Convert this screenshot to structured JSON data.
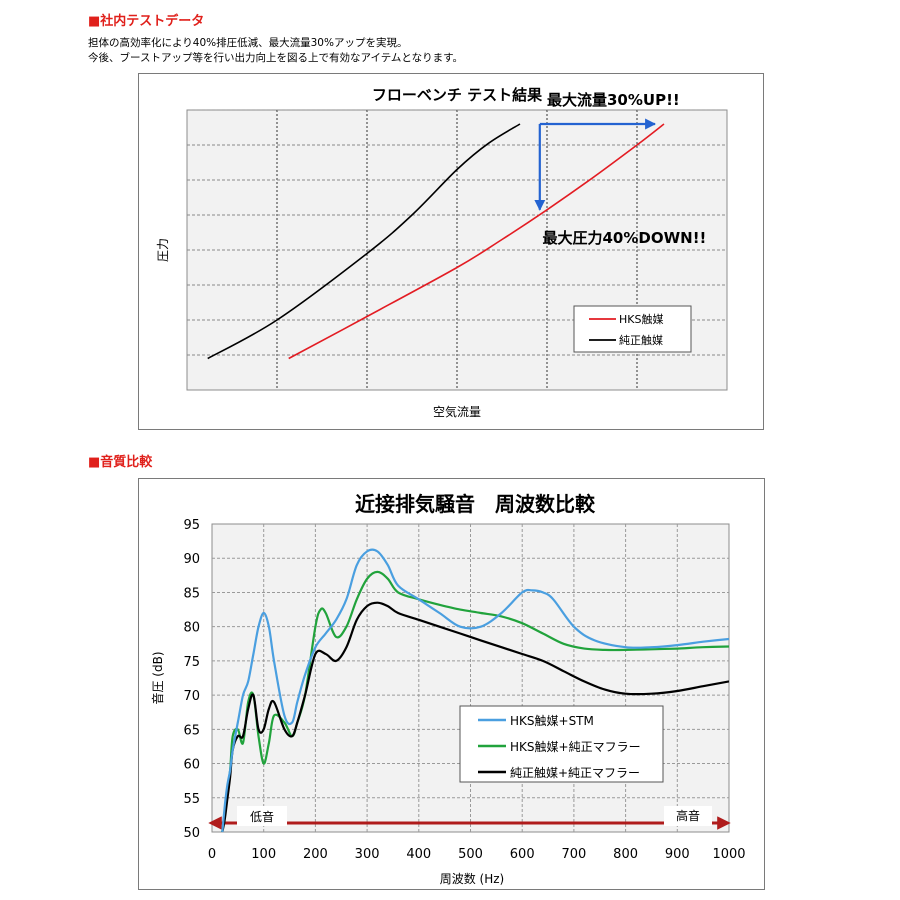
{
  "section1": {
    "heading": "■社内テストデータ",
    "description": [
      "担体の高効率化により40%排圧低減、最大流量30%アップを実現。",
      "今後、ブーストアップ等を行い出力向上を図る上で有効なアイテムとなります。"
    ]
  },
  "section2": {
    "heading": "■音質比較"
  },
  "chart_data": [
    {
      "type": "line",
      "title": "フローベンチ テスト結果",
      "xlabel": "空気流量",
      "ylabel": "圧力",
      "xlim": [
        0,
        6
      ],
      "ylim": [
        0,
        8
      ],
      "grid": true,
      "legend_position": "bottom-right",
      "series": [
        {
          "name": "HKS触媒",
          "color": "#e31c23",
          "x": [
            1.13,
            2.0,
            3.0,
            3.5,
            4.0,
            4.5,
            5.0,
            5.3
          ],
          "y": [
            0.9,
            2.1,
            3.5,
            4.3,
            5.15,
            6.05,
            7.0,
            7.6
          ]
        },
        {
          "name": "純正触媒",
          "color": "#000000",
          "x": [
            0.23,
            1.0,
            2.0,
            2.5,
            3.0,
            3.35,
            3.7
          ],
          "y": [
            0.9,
            2.0,
            3.9,
            5.0,
            6.3,
            7.05,
            7.6
          ]
        }
      ],
      "annotations": [
        {
          "text": "最大流量30%UP!!",
          "x": 4.0,
          "y": 8.15
        },
        {
          "text": "最大圧力40%DOWN!!",
          "x": 3.95,
          "y": 4.2
        }
      ],
      "arrows": [
        {
          "from": [
            3.92,
            7.6
          ],
          "to": [
            5.2,
            7.6
          ],
          "color": "#2463d1"
        },
        {
          "from": [
            3.92,
            7.6
          ],
          "to": [
            3.92,
            5.15
          ],
          "color": "#2463d1"
        }
      ]
    },
    {
      "type": "line",
      "title": "近接排気騒音　周波数比較",
      "xlabel": "周波数 (Hz)",
      "ylabel": "音圧 (dB)",
      "xlim": [
        0,
        1000
      ],
      "ylim": [
        50,
        95
      ],
      "xticks": [
        0,
        100,
        200,
        300,
        400,
        500,
        600,
        700,
        800,
        900,
        1000
      ],
      "yticks": [
        50,
        55,
        60,
        65,
        70,
        75,
        80,
        85,
        90,
        95
      ],
      "grid": true,
      "legend_position": "lower-right",
      "series": [
        {
          "name": "HKS触媒+STM",
          "color": "#4a9fe0",
          "x": [
            20,
            25,
            30,
            35,
            40,
            50,
            60,
            70,
            80,
            90,
            100,
            110,
            120,
            140,
            155,
            165,
            180,
            200,
            220,
            240,
            260,
            280,
            300,
            320,
            340,
            360,
            400,
            440,
            480,
            520,
            560,
            600,
            620,
            640,
            660,
            700,
            740,
            800,
            850,
            900,
            950,
            1000
          ],
          "y": [
            50,
            54,
            57,
            59,
            62,
            66,
            70,
            72,
            76,
            80,
            82,
            80,
            75,
            67,
            66,
            69,
            73,
            77,
            79,
            81,
            84,
            89,
            91,
            91,
            89,
            86,
            84,
            82,
            80,
            80,
            82,
            85,
            85.3,
            85,
            84,
            80,
            78,
            77,
            77,
            77.3,
            77.8,
            78.2
          ]
        },
        {
          "name": "HKS触媒+純正マフラー",
          "color": "#21a33c",
          "x": [
            20,
            25,
            30,
            35,
            40,
            50,
            60,
            70,
            80,
            90,
            100,
            110,
            120,
            140,
            155,
            165,
            180,
            200,
            210,
            220,
            240,
            260,
            280,
            300,
            320,
            340,
            360,
            400,
            440,
            480,
            520,
            560,
            600,
            640,
            680,
            720,
            760,
            800,
            850,
            900,
            950,
            1000
          ],
          "y": [
            50,
            53,
            56,
            59,
            64,
            65,
            63,
            69,
            70,
            64,
            60,
            63,
            67,
            66,
            64,
            66,
            70,
            80,
            82.5,
            82,
            78.5,
            80,
            84,
            87,
            88,
            87,
            85,
            84,
            83.2,
            82.5,
            82,
            81.5,
            80.5,
            79,
            77.5,
            76.8,
            76.6,
            76.6,
            76.7,
            76.8,
            77,
            77.1
          ]
        },
        {
          "name": "純正触媒+純正マフラー",
          "color": "#000000",
          "x": [
            20,
            25,
            30,
            35,
            40,
            50,
            60,
            70,
            80,
            90,
            100,
            110,
            120,
            140,
            155,
            165,
            180,
            200,
            220,
            240,
            260,
            280,
            300,
            320,
            340,
            360,
            400,
            440,
            480,
            520,
            560,
            600,
            640,
            680,
            720,
            760,
            800,
            850,
            900,
            950,
            1000
          ],
          "y": [
            50,
            52,
            55,
            58,
            62,
            64,
            64,
            68,
            70,
            65,
            65,
            68,
            69,
            65,
            64,
            66,
            70,
            76,
            76,
            75,
            77,
            81,
            83,
            83.5,
            83,
            82,
            81,
            80,
            79,
            78,
            77,
            76,
            75,
            73.5,
            72,
            70.8,
            70.2,
            70.2,
            70.6,
            71.3,
            72
          ]
        }
      ],
      "band_labels": [
        {
          "text": "低音",
          "position": "left"
        },
        {
          "text": "高音",
          "position": "right"
        }
      ]
    }
  ]
}
